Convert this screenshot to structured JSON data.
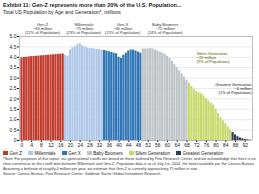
{
  "chart_data": {
    "type": "bar",
    "title": "Exhibit 11: Gen-Z represents more than 20% of the U.S. Population...",
    "subtitle": "Total US Population by Age and Generation*, millions",
    "note": "*Note: For purposes of this report, our generational cutoffs are based on those outlined by Pew Research Center, and we acknowledge that there is no clear consensus on the cutoff date between Millennials and Gen-Z. Population data is as of July 1st, 2014, the latest available per the Census Bureau. Assuming a birthrate of roughly 4 million per year, we estimate that Gen-Z is currently approaching 75 million in size.",
    "source": "Source: Census Bureau, Pew Research Center, Goldman Sachs Global Investment Research.",
    "series": [
      {
        "name": "Gen Z",
        "color": "#c0392b",
        "x": [
          0,
          1,
          2,
          3,
          4,
          5,
          6,
          7,
          8,
          9,
          10,
          11,
          12,
          13,
          14,
          15,
          16,
          17
        ],
        "values": [
          3.97,
          3.99,
          4.0,
          4.02,
          4.03,
          4.04,
          4.05,
          4.06,
          4.07,
          4.08,
          4.09,
          4.1,
          4.11,
          4.12,
          4.13,
          4.14,
          4.15,
          4.16
        ]
      },
      {
        "name": "Millennials",
        "color": "#aec6e8",
        "x": [
          18,
          19,
          20,
          21,
          22,
          23,
          24,
          25,
          26,
          27,
          28,
          29,
          30,
          31,
          32,
          33
        ],
        "values": [
          4.1,
          4.05,
          4.35,
          4.45,
          4.5,
          4.6,
          4.65,
          4.55,
          4.5,
          4.45,
          4.42,
          4.42,
          4.4,
          4.38,
          4.36,
          4.35
        ]
      },
      {
        "name": "Gen X",
        "color": "#2e75b6",
        "x": [
          34,
          35,
          36,
          37,
          38,
          39,
          40,
          41,
          42,
          43,
          44,
          45,
          46,
          47,
          48,
          49
        ],
        "values": [
          4.33,
          4.3,
          4.27,
          4.24,
          4.2,
          4.17,
          4.0,
          3.95,
          4.1,
          4.2,
          4.3,
          4.35,
          4.35,
          4.3,
          4.25,
          4.2
        ]
      },
      {
        "name": "Baby Boomers",
        "color": "#bdc3c7",
        "x": [
          50,
          51,
          52,
          53,
          54,
          55,
          56,
          57,
          58,
          59,
          60,
          61,
          62,
          63,
          64,
          65,
          66,
          67,
          68
        ],
        "values": [
          4.4,
          4.4,
          4.4,
          4.42,
          4.4,
          4.35,
          4.3,
          4.25,
          4.2,
          4.15,
          4.05,
          3.95,
          3.8,
          3.65,
          3.5,
          3.35,
          3.2,
          3.05,
          2.9
        ]
      },
      {
        "name": "Silent Generation",
        "color": "#c8d96b",
        "x": [
          69,
          70,
          71,
          72,
          73,
          74,
          75,
          76,
          77,
          78,
          79,
          80,
          81,
          82,
          83,
          84,
          85,
          86
        ],
        "values": [
          2.75,
          2.6,
          2.45,
          2.35,
          2.3,
          2.25,
          2.15,
          2.0,
          1.9,
          1.8,
          1.7,
          1.5,
          1.3,
          1.1,
          0.95,
          0.8,
          0.65,
          0.5
        ]
      },
      {
        "name": "Greatest Generation",
        "color": "#2c3e50",
        "x": [
          87,
          88,
          89,
          90,
          91,
          92,
          93,
          94
        ],
        "values": [
          0.38,
          0.27,
          0.18,
          0.12,
          0.08,
          0.05,
          0.03,
          0.02
        ]
      }
    ],
    "annotations": [
      {
        "series": "Gen Z",
        "text": "Gen-Z\n~69 million\n(22% of Population)"
      },
      {
        "series": "Millennials",
        "text": "Millennials\n~75 million\n(23% of Population)"
      },
      {
        "series": "Gen X",
        "text": "Gen-X\n~66 million\n(21% of Population)"
      },
      {
        "series": "Baby Boomers",
        "text": "Baby Boomers\n~75 million\n(24% of Population)"
      },
      {
        "series": "Silent Generation",
        "text": "Silent Generation\n~29 million\n(9% of Population)"
      },
      {
        "series": "Greatest Generation",
        "text": "Greatest Generation\n~4 million\n(1% of Population)"
      }
    ],
    "xlim": [
      -1,
      95
    ],
    "xticks": [
      0,
      4,
      8,
      12,
      16,
      20,
      24,
      28,
      32,
      36,
      40,
      44,
      48,
      52,
      56,
      60,
      64,
      68,
      72,
      76,
      80,
      84,
      88,
      92
    ],
    "ylim": [
      0,
      5.0
    ],
    "yticks": [
      0,
      0.5,
      {
        "value": 1,
        "label": "1.0"
      },
      1.5,
      {
        "value": 2,
        "label": "2.0"
      },
      2.5,
      {
        "value": 3,
        "label": "3.0"
      },
      3.5,
      {
        "value": 4,
        "label": "4.0"
      },
      4.5,
      {
        "value": 5,
        "label": "5.0"
      }
    ],
    "grid": true,
    "legend": "bottom"
  }
}
